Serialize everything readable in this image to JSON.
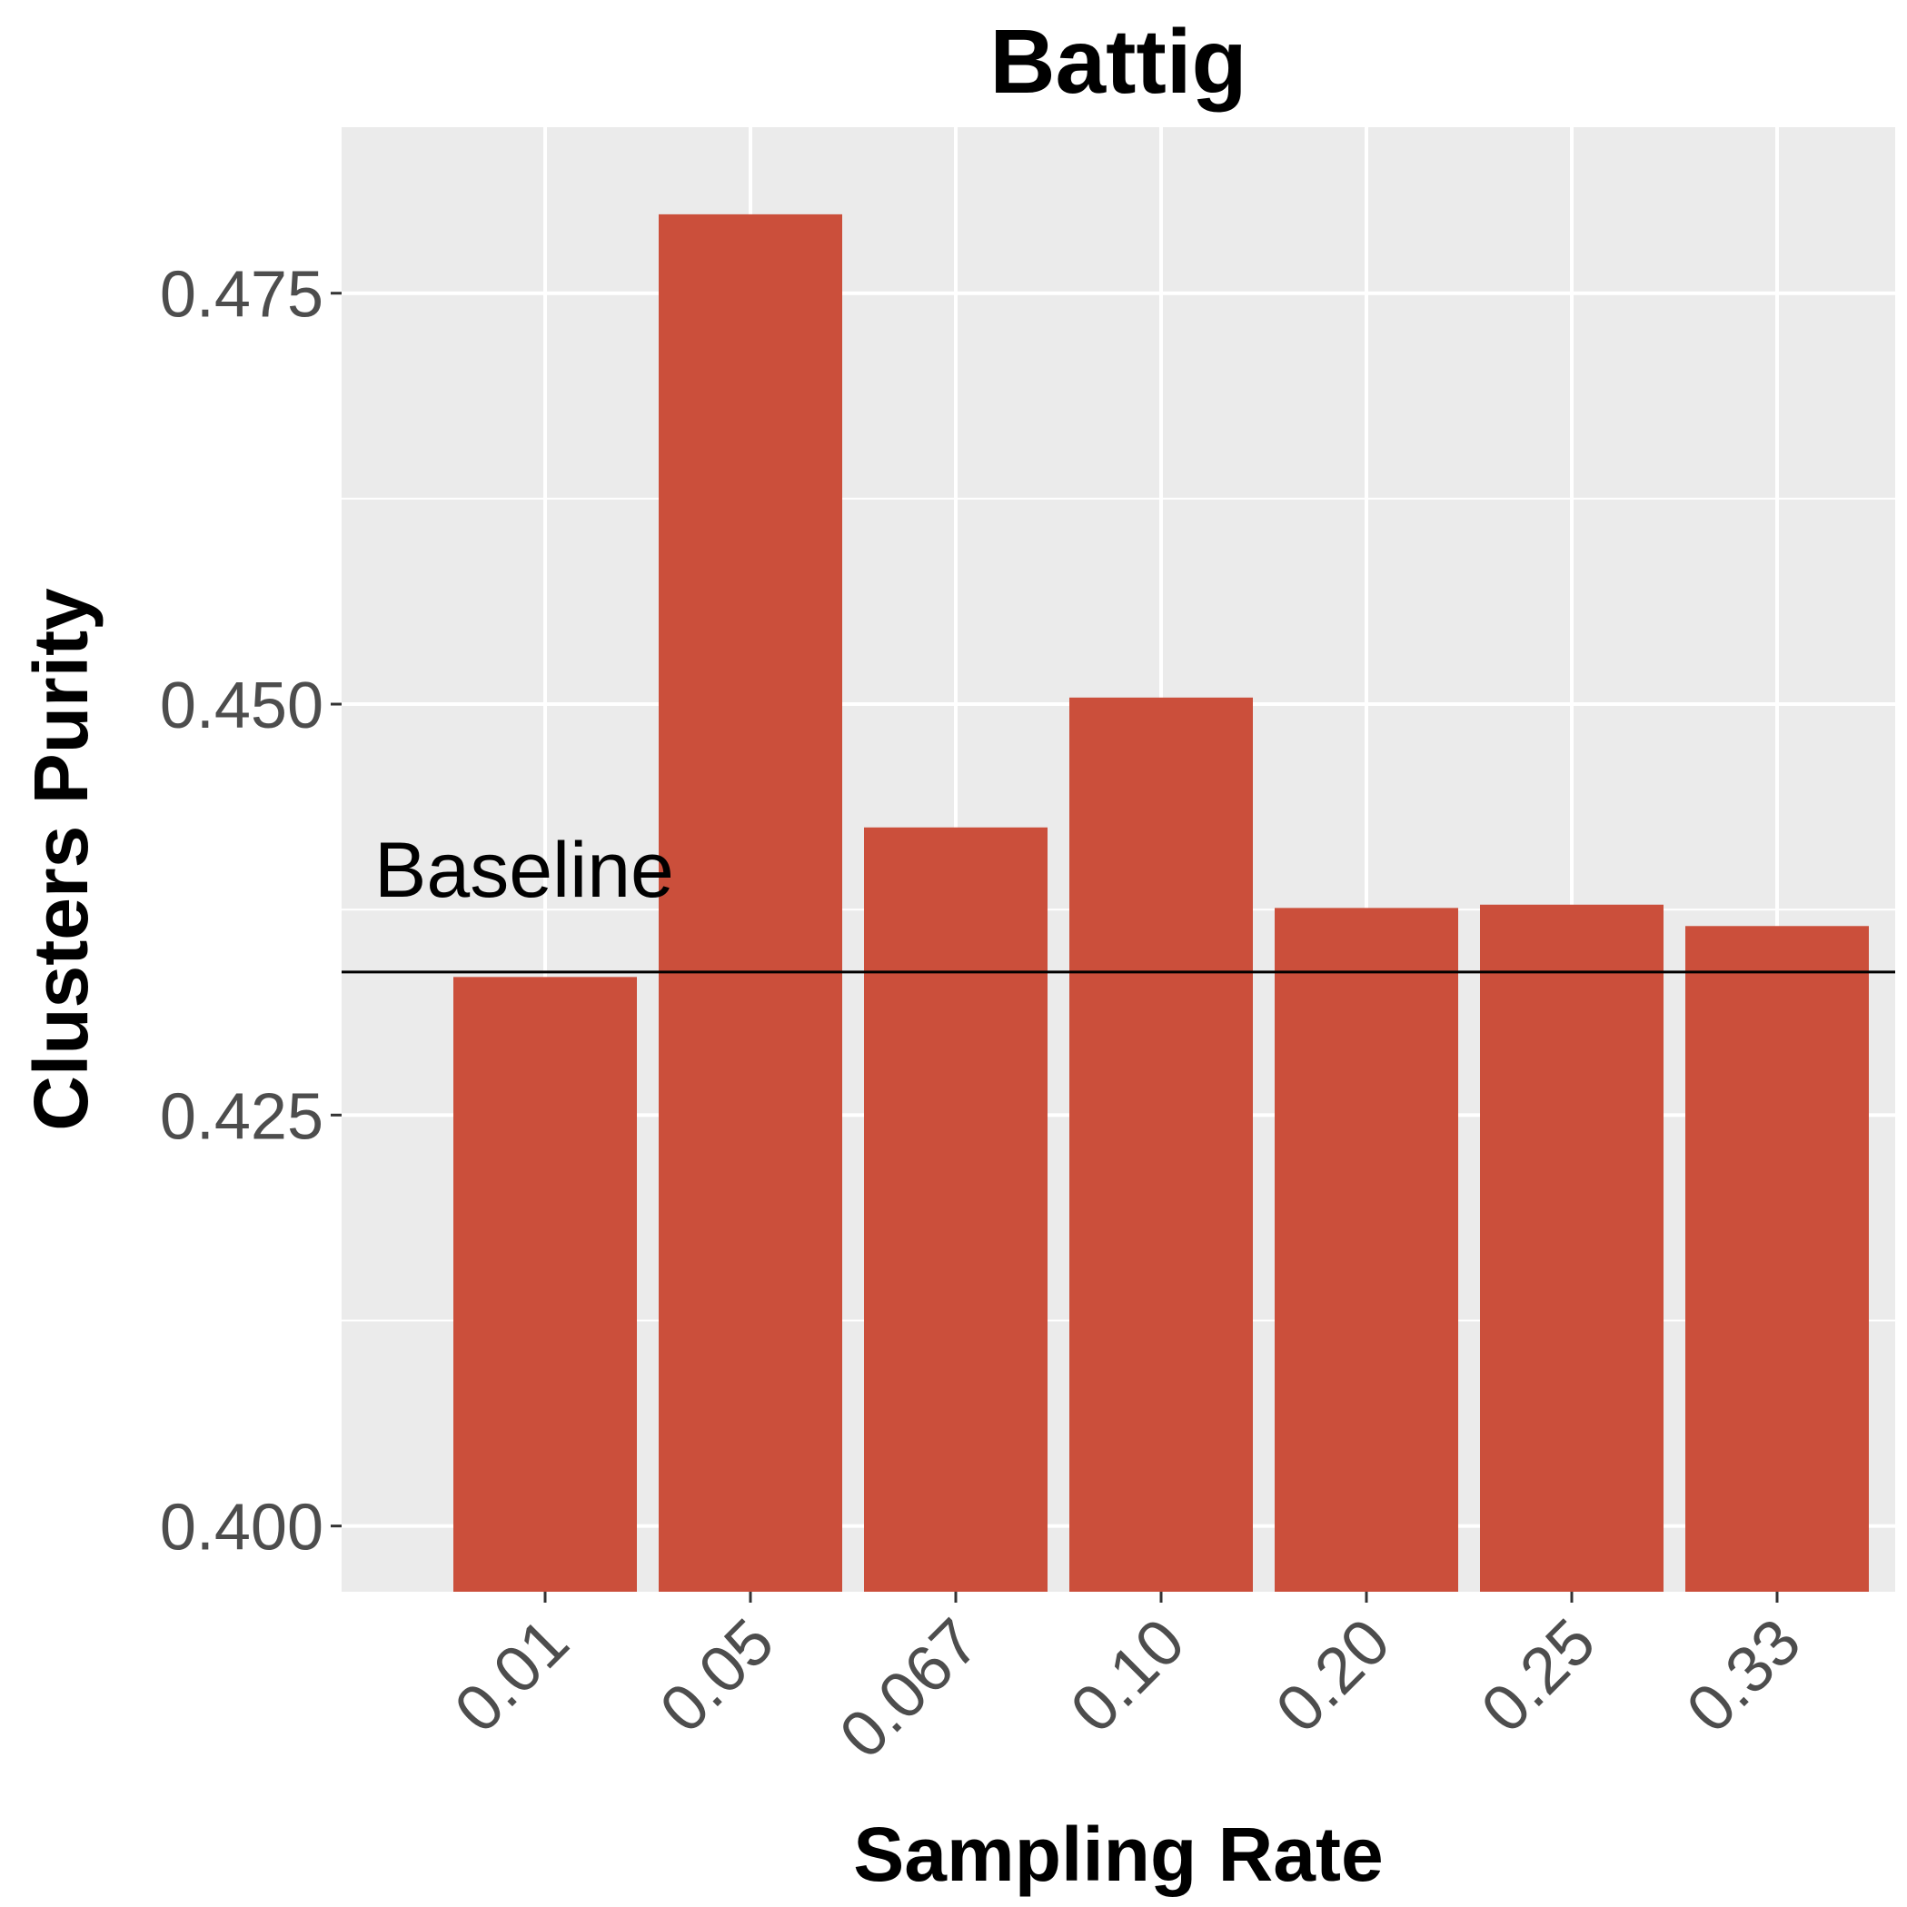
{
  "chart_data": {
    "type": "bar",
    "title": "Battig",
    "xlabel": "Sampling Rate",
    "ylabel": "Clusters Purity",
    "categories": [
      "0.01",
      "0.05",
      "0.067",
      "0.10",
      "0.20",
      "0.25",
      "0.33"
    ],
    "values": [
      0.4334,
      0.4798,
      0.4425,
      0.4504,
      0.4376,
      0.4378,
      0.4365
    ],
    "ylim": [
      0.396,
      0.4851
    ],
    "yticks": [
      0.4,
      0.425,
      0.45,
      0.475
    ],
    "ytick_labels": [
      "0.400",
      "0.425",
      "0.450",
      "0.475"
    ],
    "grid": true,
    "bar_color": "#cb4f3b",
    "panel_color": "#ebebeb",
    "baseline": {
      "value": 0.4337,
      "label": "Baseline"
    }
  }
}
